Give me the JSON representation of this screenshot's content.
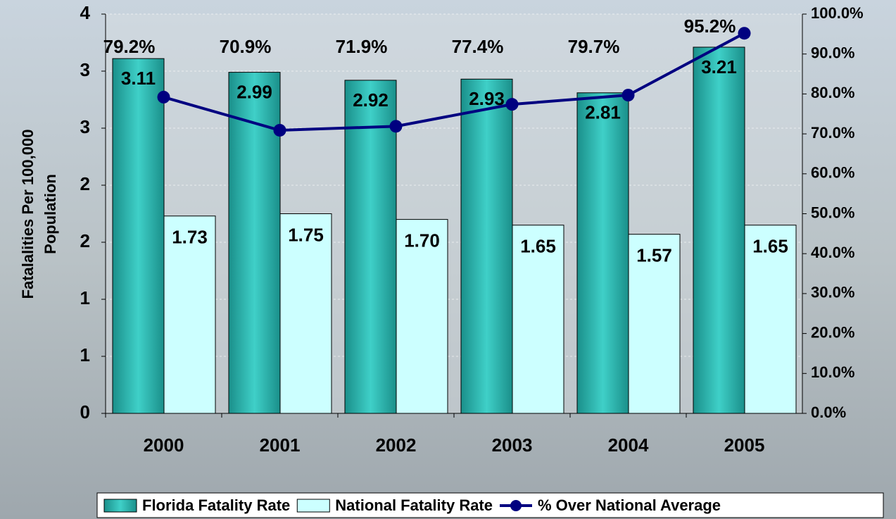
{
  "chart_data": {
    "type": "bar-line",
    "y_label": [
      "Fatalalities Per 100,000",
      "Population"
    ],
    "categories": [
      "2000",
      "2001",
      "2002",
      "2003",
      "2004",
      "2005"
    ],
    "series": [
      {
        "name": "Florida Fatality Rate",
        "color": "#20b2aa",
        "type": "bar",
        "values": [
          3.11,
          2.99,
          2.92,
          2.93,
          2.81,
          3.21
        ]
      },
      {
        "name": "National Fatality Rate",
        "color": "#ccffff",
        "type": "bar",
        "values": [
          1.73,
          1.75,
          1.7,
          1.65,
          1.57,
          1.65
        ],
        "value_labels": [
          "1.73",
          "1.75",
          "1.70",
          "1.65",
          "1.57",
          "1.65"
        ]
      },
      {
        "name": "% Over National Average",
        "color": "#000080",
        "type": "line",
        "axis": "y2",
        "values": [
          79.2,
          70.9,
          71.9,
          77.4,
          79.7,
          95.2
        ],
        "value_labels": [
          "79.2%",
          "70.9%",
          "71.9%",
          "77.4%",
          "79.7%",
          "95.2%"
        ]
      }
    ],
    "ylim": [
      0,
      3.5
    ],
    "yticks": [
      0,
      {
        "value": 0.5,
        "label": "1"
      },
      1,
      {
        "value": 1.5,
        "label": "2"
      },
      2,
      {
        "value": 2.5,
        "label": "3"
      },
      3,
      {
        "value": 3.5,
        "label": "4"
      }
    ],
    "y2lim": [
      0,
      100
    ],
    "y2ticks": [
      {
        "value": 0,
        "label": "0.0%"
      },
      {
        "value": 10,
        "label": "10.0%"
      },
      {
        "value": 20,
        "label": "20.0%"
      },
      {
        "value": 30,
        "label": "30.0%"
      },
      {
        "value": 40,
        "label": "40.0%"
      },
      {
        "value": 50,
        "label": "50.0%"
      },
      {
        "value": 60,
        "label": "60.0%"
      },
      {
        "value": 70,
        "label": "70.0%"
      },
      {
        "value": 80,
        "label": "80.0%"
      },
      {
        "value": 90,
        "label": "90.0%"
      },
      {
        "value": 100,
        "label": "100.0%"
      }
    ],
    "grid": true,
    "legend": "bottom"
  }
}
